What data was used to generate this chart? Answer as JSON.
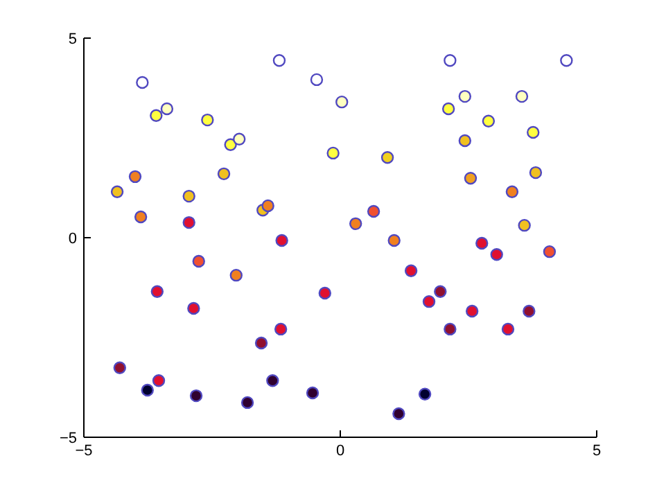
{
  "chart_data": {
    "type": "scatter",
    "x": [
      -3.86,
      -3.59,
      -3.38,
      -2.59,
      -2.14,
      -1.97,
      -1.19,
      -0.46,
      0.03,
      -0.14,
      0.92,
      2.14,
      2.43,
      2.11,
      2.89,
      3.54,
      3.76,
      4.41,
      2.43,
      2.54,
      3.81,
      3.35,
      3.59,
      2.76,
      3.05,
      4.08,
      0.3,
      0.65,
      1.05,
      1.38,
      1.73,
      1.95,
      2.57,
      2.14,
      3.27,
      3.68,
      1.65,
      1.14,
      -4.35,
      -4.0,
      -3.89,
      -2.95,
      -2.27,
      -1.51,
      -1.41,
      -2.95,
      -2.76,
      -2.03,
      -1.14,
      -3.57,
      -2.86,
      -0.3,
      -1.16,
      -1.54,
      -4.3,
      -3.54,
      -3.76,
      -2.81,
      -1.81,
      -1.32,
      -0.54
    ],
    "values": [
      3.89,
      3.06,
      3.23,
      2.95,
      2.33,
      2.47,
      4.44,
      3.96,
      3.4,
      2.12,
      2.01,
      4.44,
      3.54,
      3.23,
      2.92,
      3.54,
      2.64,
      4.44,
      2.43,
      1.49,
      1.63,
      1.15,
      0.31,
      -0.14,
      -0.42,
      -0.35,
      0.35,
      0.66,
      -0.07,
      -0.83,
      -1.6,
      -1.35,
      -1.84,
      -2.29,
      -2.29,
      -1.84,
      -3.92,
      -4.41,
      1.15,
      1.53,
      0.52,
      1.04,
      1.6,
      0.69,
      0.8,
      0.38,
      -0.59,
      -0.94,
      -0.07,
      -1.35,
      -1.77,
      -1.39,
      -2.29,
      -2.64,
      -3.26,
      -3.58,
      -3.82,
      -3.96,
      -4.13,
      -3.58,
      -3.89
    ],
    "colors": [
      "#ffffff",
      "#ffff40",
      "#ffffc0",
      "#ffff40",
      "#ffff40",
      "#ffffc0",
      "#ffffff",
      "#ffffff",
      "#ffffc0",
      "#ffff40",
      "#f0d020",
      "#ffffff",
      "#ffffc0",
      "#ffff40",
      "#ffff40",
      "#ffffc0",
      "#ffff40",
      "#ffffff",
      "#f0c020",
      "#f0a020",
      "#f0c020",
      "#f08020",
      "#f0c020",
      "#e01030",
      "#e01030",
      "#f05030",
      "#f08020",
      "#f05030",
      "#f08020",
      "#e01030",
      "#e01030",
      "#901030",
      "#e01030",
      "#901030",
      "#e01030",
      "#901030",
      "#000030",
      "#300030",
      "#f0c020",
      "#f08020",
      "#f08020",
      "#f0c020",
      "#f0c020",
      "#f0c020",
      "#f08020",
      "#e01030",
      "#f05030",
      "#f08020",
      "#e01030",
      "#e01030",
      "#e01030",
      "#e01030",
      "#e01030",
      "#901030",
      "#901030",
      "#e01030",
      "#000030",
      "#300030",
      "#300030",
      "#300030",
      "#300030"
    ],
    "xlim": [
      -5,
      5
    ],
    "ylim": [
      -5,
      5
    ],
    "xticks": [
      -5,
      0,
      5
    ],
    "yticks": [
      -5,
      0,
      5
    ],
    "grid": false,
    "marker": "circle"
  }
}
